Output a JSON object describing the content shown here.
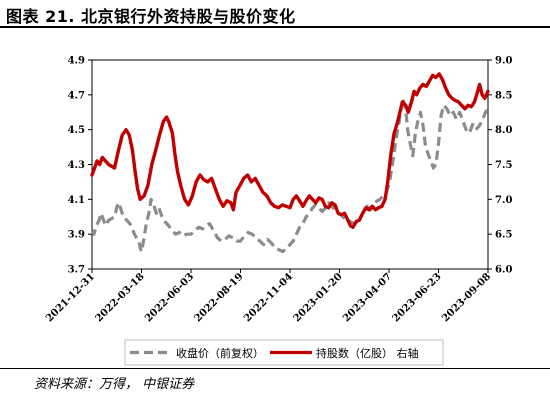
{
  "figure": {
    "title": "图表 21. 北京银行外资持股与股价变化",
    "source": "资料来源：万得， 中银证券"
  },
  "colors": {
    "price": "#8c8c8c",
    "holdings": "#c00000",
    "axis": "#000000",
    "legend_border": "#bfbfbf"
  },
  "chart_data": {
    "type": "line",
    "title": "",
    "xlabel": "",
    "ylabel": "",
    "y2label": "",
    "x_range": [
      "2021-12-31",
      "2023-09-08"
    ],
    "ylim": [
      3.7,
      4.9
    ],
    "y2lim": [
      6.0,
      9.0
    ],
    "y_ticks": [
      "3.7",
      "3.9",
      "4.1",
      "4.3",
      "4.5",
      "4.7",
      "4.9"
    ],
    "y2_ticks": [
      "6.0",
      "6.5",
      "7.0",
      "7.5",
      "8.0",
      "8.5",
      "9.0"
    ],
    "x_ticks": [
      "2021-12-31",
      "2022-03-18",
      "2022-06-03",
      "2022-08-19",
      "2022-11-04",
      "2023-01-20",
      "2023-04-07",
      "2023-06-23",
      "2023-09-08"
    ],
    "legend_position": "bottom",
    "grid": false,
    "series": [
      {
        "name": "收盘价（前复权）",
        "axis": "left",
        "style": "dashed",
        "color": "#8c8c8c",
        "points": [
          [
            "2021-12-31",
            3.92
          ],
          [
            "2022-01-03",
            3.9
          ],
          [
            "2022-01-07",
            3.95
          ],
          [
            "2022-01-11",
            3.98
          ],
          [
            "2022-01-14",
            4.02
          ],
          [
            "2022-01-18",
            3.98
          ],
          [
            "2022-01-21",
            3.95
          ],
          [
            "2022-01-26",
            3.98
          ],
          [
            "2022-02-04",
            4.0
          ],
          [
            "2022-02-08",
            4.06
          ],
          [
            "2022-02-11",
            4.08
          ],
          [
            "2022-02-15",
            4.03
          ],
          [
            "2022-02-18",
            4.0
          ],
          [
            "2022-02-23",
            3.98
          ],
          [
            "2022-02-28",
            3.96
          ],
          [
            "2022-03-03",
            3.94
          ],
          [
            "2022-03-07",
            3.9
          ],
          [
            "2022-03-10",
            3.88
          ],
          [
            "2022-03-14",
            3.86
          ],
          [
            "2022-03-16",
            3.82
          ],
          [
            "2022-03-18",
            3.8
          ],
          [
            "2022-03-22",
            3.88
          ],
          [
            "2022-03-25",
            3.95
          ],
          [
            "2022-03-30",
            4.03
          ],
          [
            "2022-04-02",
            4.1
          ],
          [
            "2022-04-06",
            4.07
          ],
          [
            "2022-04-10",
            4.02
          ],
          [
            "2022-04-14",
            4.05
          ],
          [
            "2022-04-19",
            4.0
          ],
          [
            "2022-04-24",
            3.97
          ],
          [
            "2022-04-29",
            3.95
          ],
          [
            "2022-05-05",
            3.92
          ],
          [
            "2022-05-10",
            3.9
          ],
          [
            "2022-05-16",
            3.91
          ],
          [
            "2022-05-21",
            3.89
          ],
          [
            "2022-05-27",
            3.9
          ],
          [
            "2022-06-03",
            3.9
          ],
          [
            "2022-06-09",
            3.92
          ],
          [
            "2022-06-15",
            3.94
          ],
          [
            "2022-06-21",
            3.93
          ],
          [
            "2022-06-27",
            3.95
          ],
          [
            "2022-07-02",
            3.96
          ],
          [
            "2022-07-08",
            3.92
          ],
          [
            "2022-07-14",
            3.88
          ],
          [
            "2022-07-20",
            3.86
          ],
          [
            "2022-07-26",
            3.87
          ],
          [
            "2022-08-01",
            3.89
          ],
          [
            "2022-08-07",
            3.88
          ],
          [
            "2022-08-13",
            3.86
          ],
          [
            "2022-08-19",
            3.86
          ],
          [
            "2022-08-25",
            3.89
          ],
          [
            "2022-08-31",
            3.91
          ],
          [
            "2022-09-06",
            3.9
          ],
          [
            "2022-09-12",
            3.88
          ],
          [
            "2022-09-18",
            3.86
          ],
          [
            "2022-09-24",
            3.84
          ],
          [
            "2022-09-30",
            3.87
          ],
          [
            "2022-10-06",
            3.85
          ],
          [
            "2022-10-12",
            3.82
          ],
          [
            "2022-10-18",
            3.81
          ],
          [
            "2022-10-24",
            3.8
          ],
          [
            "2022-10-30",
            3.82
          ],
          [
            "2022-11-04",
            3.84
          ],
          [
            "2022-11-09",
            3.86
          ],
          [
            "2022-11-14",
            3.9
          ],
          [
            "2022-11-19",
            3.94
          ],
          [
            "2022-11-24",
            3.96
          ],
          [
            "2022-11-29",
            4.0
          ],
          [
            "2022-12-04",
            4.02
          ],
          [
            "2022-12-09",
            4.05
          ],
          [
            "2022-12-14",
            4.07
          ],
          [
            "2022-12-19",
            4.05
          ],
          [
            "2022-12-24",
            4.03
          ],
          [
            "2022-12-29",
            4.05
          ],
          [
            "2023-01-03",
            4.08
          ],
          [
            "2023-01-08",
            4.06
          ],
          [
            "2023-01-13",
            4.04
          ],
          [
            "2023-01-18",
            4.02
          ],
          [
            "2023-01-23",
            4.01
          ],
          [
            "2023-01-28",
            3.99
          ],
          [
            "2023-02-02",
            3.98
          ],
          [
            "2023-02-07",
            3.97
          ],
          [
            "2023-02-12",
            3.96
          ],
          [
            "2023-02-17",
            3.97
          ],
          [
            "2023-02-22",
            4.0
          ],
          [
            "2023-02-27",
            4.03
          ],
          [
            "2023-03-04",
            4.06
          ],
          [
            "2023-03-09",
            4.04
          ],
          [
            "2023-03-14",
            4.06
          ],
          [
            "2023-03-19",
            4.09
          ],
          [
            "2023-03-24",
            4.1
          ],
          [
            "2023-03-29",
            4.12
          ],
          [
            "2023-04-03",
            4.14
          ],
          [
            "2023-04-08",
            4.2
          ],
          [
            "2023-04-13",
            4.32
          ],
          [
            "2023-04-18",
            4.45
          ],
          [
            "2023-04-23",
            4.55
          ],
          [
            "2023-04-28",
            4.68
          ],
          [
            "2023-05-03",
            4.62
          ],
          [
            "2023-05-06",
            4.5
          ],
          [
            "2023-05-10",
            4.42
          ],
          [
            "2023-05-14",
            4.35
          ],
          [
            "2023-05-18",
            4.48
          ],
          [
            "2023-05-22",
            4.55
          ],
          [
            "2023-05-26",
            4.6
          ],
          [
            "2023-05-30",
            4.52
          ],
          [
            "2023-06-03",
            4.4
          ],
          [
            "2023-06-07",
            4.36
          ],
          [
            "2023-06-11",
            4.32
          ],
          [
            "2023-06-15",
            4.28
          ],
          [
            "2023-06-19",
            4.3
          ],
          [
            "2023-06-23",
            4.42
          ],
          [
            "2023-06-27",
            4.58
          ],
          [
            "2023-07-01",
            4.64
          ],
          [
            "2023-07-06",
            4.62
          ],
          [
            "2023-07-11",
            4.58
          ],
          [
            "2023-07-16",
            4.6
          ],
          [
            "2023-07-21",
            4.56
          ],
          [
            "2023-07-26",
            4.6
          ],
          [
            "2023-07-31",
            4.55
          ],
          [
            "2023-08-05",
            4.5
          ],
          [
            "2023-08-10",
            4.48
          ],
          [
            "2023-08-15",
            4.53
          ],
          [
            "2023-08-20",
            4.5
          ],
          [
            "2023-08-25",
            4.52
          ],
          [
            "2023-08-30",
            4.55
          ],
          [
            "2023-09-04",
            4.6
          ],
          [
            "2023-09-08",
            4.62
          ]
        ]
      },
      {
        "name": "持股数（亿股） 右轴",
        "axis": "right",
        "style": "solid",
        "color": "#c00000",
        "points": [
          [
            "2021-12-31",
            7.35
          ],
          [
            "2022-01-04",
            7.45
          ],
          [
            "2022-01-08",
            7.55
          ],
          [
            "2022-01-12",
            7.5
          ],
          [
            "2022-01-16",
            7.6
          ],
          [
            "2022-01-21",
            7.55
          ],
          [
            "2022-01-26",
            7.5
          ],
          [
            "2022-02-04",
            7.45
          ],
          [
            "2022-02-10",
            7.7
          ],
          [
            "2022-02-16",
            7.92
          ],
          [
            "2022-02-22",
            8.0
          ],
          [
            "2022-02-27",
            7.92
          ],
          [
            "2022-03-04",
            7.7
          ],
          [
            "2022-03-08",
            7.4
          ],
          [
            "2022-03-12",
            7.15
          ],
          [
            "2022-03-16",
            7.0
          ],
          [
            "2022-03-22",
            7.05
          ],
          [
            "2022-03-28",
            7.2
          ],
          [
            "2022-04-03",
            7.5
          ],
          [
            "2022-04-09",
            7.7
          ],
          [
            "2022-04-15",
            7.92
          ],
          [
            "2022-04-21",
            8.12
          ],
          [
            "2022-04-26",
            8.18
          ],
          [
            "2022-04-30",
            8.1
          ],
          [
            "2022-05-05",
            7.95
          ],
          [
            "2022-05-09",
            7.65
          ],
          [
            "2022-05-13",
            7.4
          ],
          [
            "2022-05-18",
            7.2
          ],
          [
            "2022-05-24",
            7.0
          ],
          [
            "2022-05-30",
            6.92
          ],
          [
            "2022-06-05",
            7.05
          ],
          [
            "2022-06-11",
            7.25
          ],
          [
            "2022-06-17",
            7.35
          ],
          [
            "2022-06-23",
            7.28
          ],
          [
            "2022-06-29",
            7.25
          ],
          [
            "2022-07-05",
            7.3
          ],
          [
            "2022-07-11",
            7.15
          ],
          [
            "2022-07-17",
            7.0
          ],
          [
            "2022-07-23",
            6.9
          ],
          [
            "2022-07-29",
            6.98
          ],
          [
            "2022-08-04",
            6.95
          ],
          [
            "2022-08-08",
            6.85
          ],
          [
            "2022-08-12",
            7.1
          ],
          [
            "2022-08-18",
            7.2
          ],
          [
            "2022-08-24",
            7.3
          ],
          [
            "2022-08-30",
            7.35
          ],
          [
            "2022-09-05",
            7.25
          ],
          [
            "2022-09-11",
            7.3
          ],
          [
            "2022-09-17",
            7.2
          ],
          [
            "2022-09-23",
            7.1
          ],
          [
            "2022-09-29",
            7.05
          ],
          [
            "2022-10-05",
            6.95
          ],
          [
            "2022-10-11",
            6.9
          ],
          [
            "2022-10-17",
            6.88
          ],
          [
            "2022-10-23",
            6.92
          ],
          [
            "2022-10-29",
            6.9
          ],
          [
            "2022-11-04",
            6.88
          ],
          [
            "2022-11-09",
            7.0
          ],
          [
            "2022-11-14",
            7.05
          ],
          [
            "2022-11-19",
            6.98
          ],
          [
            "2022-11-24",
            6.9
          ],
          [
            "2022-11-29",
            6.98
          ],
          [
            "2022-12-04",
            7.05
          ],
          [
            "2022-12-09",
            7.0
          ],
          [
            "2022-12-14",
            6.95
          ],
          [
            "2022-12-19",
            7.02
          ],
          [
            "2022-12-24",
            7.0
          ],
          [
            "2022-12-29",
            6.9
          ],
          [
            "2023-01-03",
            6.88
          ],
          [
            "2023-01-08",
            6.95
          ],
          [
            "2023-01-13",
            6.92
          ],
          [
            "2023-01-18",
            6.8
          ],
          [
            "2023-01-23",
            6.78
          ],
          [
            "2023-01-28",
            6.8
          ],
          [
            "2023-02-02",
            6.7
          ],
          [
            "2023-02-06",
            6.62
          ],
          [
            "2023-02-10",
            6.6
          ],
          [
            "2023-02-15",
            6.68
          ],
          [
            "2023-02-20",
            6.7
          ],
          [
            "2023-02-25",
            6.8
          ],
          [
            "2023-03-02",
            6.88
          ],
          [
            "2023-03-07",
            6.85
          ],
          [
            "2023-03-12",
            6.9
          ],
          [
            "2023-03-17",
            6.85
          ],
          [
            "2023-03-22",
            6.88
          ],
          [
            "2023-03-27",
            6.9
          ],
          [
            "2023-04-01",
            7.0
          ],
          [
            "2023-04-05",
            7.25
          ],
          [
            "2023-04-10",
            7.65
          ],
          [
            "2023-04-15",
            7.95
          ],
          [
            "2023-04-20",
            8.1
          ],
          [
            "2023-04-24",
            8.25
          ],
          [
            "2023-04-28",
            8.4
          ],
          [
            "2023-05-03",
            8.35
          ],
          [
            "2023-05-07",
            8.25
          ],
          [
            "2023-05-12",
            8.4
          ],
          [
            "2023-05-16",
            8.55
          ],
          [
            "2023-05-20",
            8.5
          ],
          [
            "2023-05-25",
            8.6
          ],
          [
            "2023-05-30",
            8.65
          ],
          [
            "2023-06-04",
            8.62
          ],
          [
            "2023-06-09",
            8.7
          ],
          [
            "2023-06-14",
            8.78
          ],
          [
            "2023-06-19",
            8.75
          ],
          [
            "2023-06-24",
            8.8
          ],
          [
            "2023-06-29",
            8.72
          ],
          [
            "2023-07-04",
            8.6
          ],
          [
            "2023-07-09",
            8.5
          ],
          [
            "2023-07-14",
            8.45
          ],
          [
            "2023-07-19",
            8.42
          ],
          [
            "2023-07-24",
            8.4
          ],
          [
            "2023-07-29",
            8.35
          ],
          [
            "2023-08-03",
            8.3
          ],
          [
            "2023-08-08",
            8.35
          ],
          [
            "2023-08-13",
            8.33
          ],
          [
            "2023-08-18",
            8.4
          ],
          [
            "2023-08-23",
            8.55
          ],
          [
            "2023-08-26",
            8.65
          ],
          [
            "2023-08-30",
            8.5
          ],
          [
            "2023-09-03",
            8.45
          ],
          [
            "2023-09-08",
            8.55
          ]
        ]
      }
    ]
  }
}
